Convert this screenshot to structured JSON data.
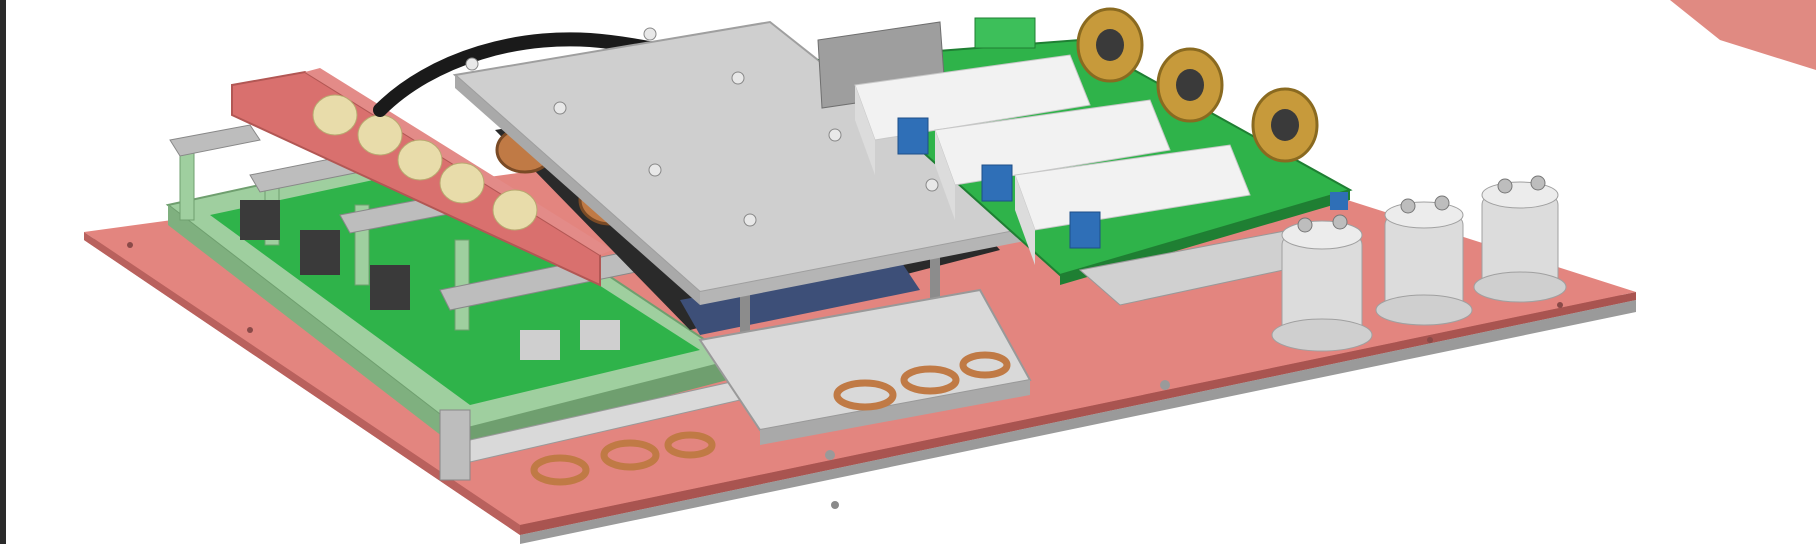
{
  "image": {
    "subject": "power-electronics-assembly-render",
    "colors": {
      "background": "#ffffff",
      "baseplate": "#e3857f",
      "baseplate_edge": "#c56a66",
      "red_bracket": "#d9706e",
      "heatsink_top": "#cfcfcf",
      "heatsink_edge": "#a9a9a9",
      "pcb_green": "#2fb34a",
      "frame_green": "#9fcf9f",
      "capacitor_white": "#f2f2f2",
      "transformer_copper": "#c07a45",
      "toroid_gold": "#c79a3b",
      "terminal_gray": "#dcdcdc",
      "blue_component": "#2f6fb7",
      "silver": "#bdbdbd"
    }
  }
}
